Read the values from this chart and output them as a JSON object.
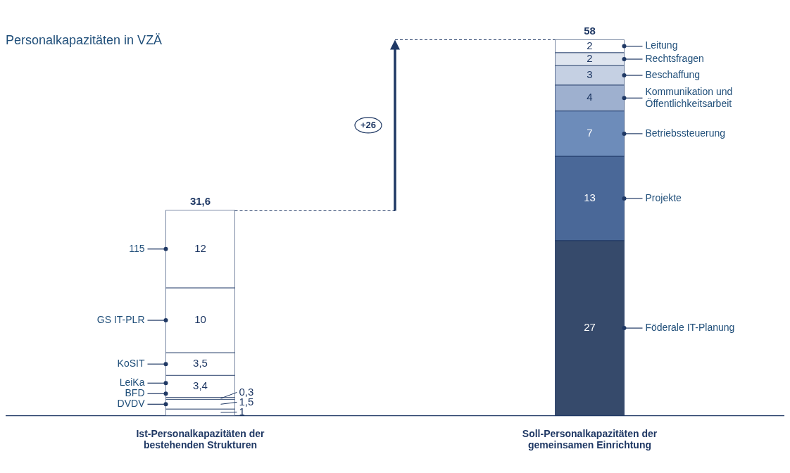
{
  "chart_data": {
    "type": "bar",
    "stacked": true,
    "ylabel": "Personalkapazitäten in VZÄ",
    "categories": [
      "Ist-Personalkapazitäten der bestehenden Strukturen",
      "Soll-Personalkapazitäten der gemeinsamen Einrichtung"
    ],
    "series": [
      {
        "color": "#ffffff",
        "values": [
          1,
          null
        ],
        "value_labels": [
          "1",
          null
        ]
      },
      {
        "name": "DVDV",
        "color": "#ffffff",
        "values": [
          1.5,
          null
        ],
        "value_labels": [
          "1,5",
          null
        ]
      },
      {
        "name": "BFD",
        "color": "#ffffff",
        "values": [
          0.3,
          null
        ],
        "value_labels": [
          "0,3",
          null
        ]
      },
      {
        "name": "LeiKa",
        "color": "#ffffff",
        "values": [
          3.4,
          null
        ],
        "value_labels": [
          "3,4",
          null
        ]
      },
      {
        "name": "KoSIT",
        "color": "#ffffff",
        "values": [
          3.5,
          null
        ],
        "value_labels": [
          "3,5",
          null
        ]
      },
      {
        "name": "GS IT-PLR",
        "color": "#ffffff",
        "values": [
          10,
          null
        ],
        "value_labels": [
          "10",
          null
        ]
      },
      {
        "name": "115",
        "color": "#ffffff",
        "values": [
          12,
          null
        ],
        "value_labels": [
          "12",
          null
        ]
      },
      {
        "name": "Föderale IT-Planung",
        "color": "#364a6b",
        "values": [
          null,
          27
        ],
        "value_labels": [
          null,
          "27"
        ]
      },
      {
        "name": "Projekte",
        "color": "#4a6898",
        "values": [
          null,
          13
        ],
        "value_labels": [
          null,
          "13"
        ]
      },
      {
        "name": "Betriebssteuerung",
        "color": "#6d8cba",
        "values": [
          null,
          7
        ],
        "value_labels": [
          null,
          "7"
        ]
      },
      {
        "name": "Kommunikation und Öffentlichkeitsarbeit",
        "color": "#9eb0cf",
        "values": [
          null,
          4
        ],
        "value_labels": [
          null,
          "4"
        ]
      },
      {
        "name": "Beschaffung",
        "color": "#c5d0e3",
        "values": [
          null,
          3
        ],
        "value_labels": [
          null,
          "3"
        ]
      },
      {
        "name": "Rechtsfragen",
        "color": "#dfe5ef",
        "values": [
          null,
          2
        ],
        "value_labels": [
          null,
          "2"
        ]
      },
      {
        "name": "Leitung",
        "color": "#ffffff",
        "values": [
          null,
          2
        ],
        "value_labels": [
          null,
          "2"
        ]
      }
    ],
    "totals": [
      "31,6",
      "58"
    ],
    "ref_lines": [
      {
        "axis": "y",
        "value": 31.6,
        "line_style": "dashed",
        "color": "#1f3864"
      },
      {
        "axis": "y",
        "value": 58,
        "line_style": "dashed",
        "color": "#1f3864"
      }
    ],
    "annotations": [
      "+26"
    ],
    "grid": false,
    "legend": false
  }
}
